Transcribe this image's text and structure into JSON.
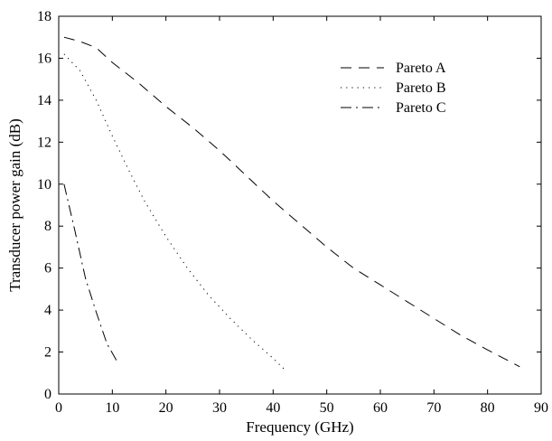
{
  "chart_data": {
    "type": "line",
    "title": "",
    "xlabel": "Frequency (GHz)",
    "ylabel": "Transducer power gain (dB)",
    "xlim": [
      0,
      90
    ],
    "ylim": [
      0,
      18
    ],
    "xticks": [
      "0",
      "10",
      "20",
      "30",
      "40",
      "50",
      "60",
      "70",
      "80",
      "90"
    ],
    "yticks": [
      "0",
      "2",
      "4",
      "6",
      "8",
      "10",
      "12",
      "14",
      "16",
      "18"
    ],
    "grid": false,
    "legend_position": "top-right",
    "series": [
      {
        "name": "Pareto A",
        "style": "dashed",
        "x": [
          1,
          4,
          7,
          10,
          15,
          20,
          25,
          30,
          35,
          40,
          45,
          50,
          55,
          60,
          65,
          70,
          75,
          80,
          86
        ],
        "y": [
          17.0,
          16.8,
          16.5,
          15.8,
          14.8,
          13.7,
          12.7,
          11.6,
          10.4,
          9.2,
          8.1,
          7.0,
          6.0,
          5.2,
          4.4,
          3.6,
          2.8,
          2.1,
          1.3
        ]
      },
      {
        "name": "Pareto B",
        "style": "dotted",
        "x": [
          1,
          4,
          7,
          10,
          13,
          16,
          20,
          24,
          28,
          32,
          36,
          40,
          42
        ],
        "y": [
          16.2,
          15.4,
          14.0,
          12.3,
          10.7,
          9.2,
          7.5,
          6.0,
          4.7,
          3.6,
          2.6,
          1.7,
          1.2
        ]
      },
      {
        "name": "Pareto C",
        "style": "dashdot",
        "x": [
          1,
          3,
          5,
          7,
          9,
          11
        ],
        "y": [
          10.0,
          7.8,
          5.5,
          3.9,
          2.4,
          1.5
        ]
      }
    ]
  }
}
